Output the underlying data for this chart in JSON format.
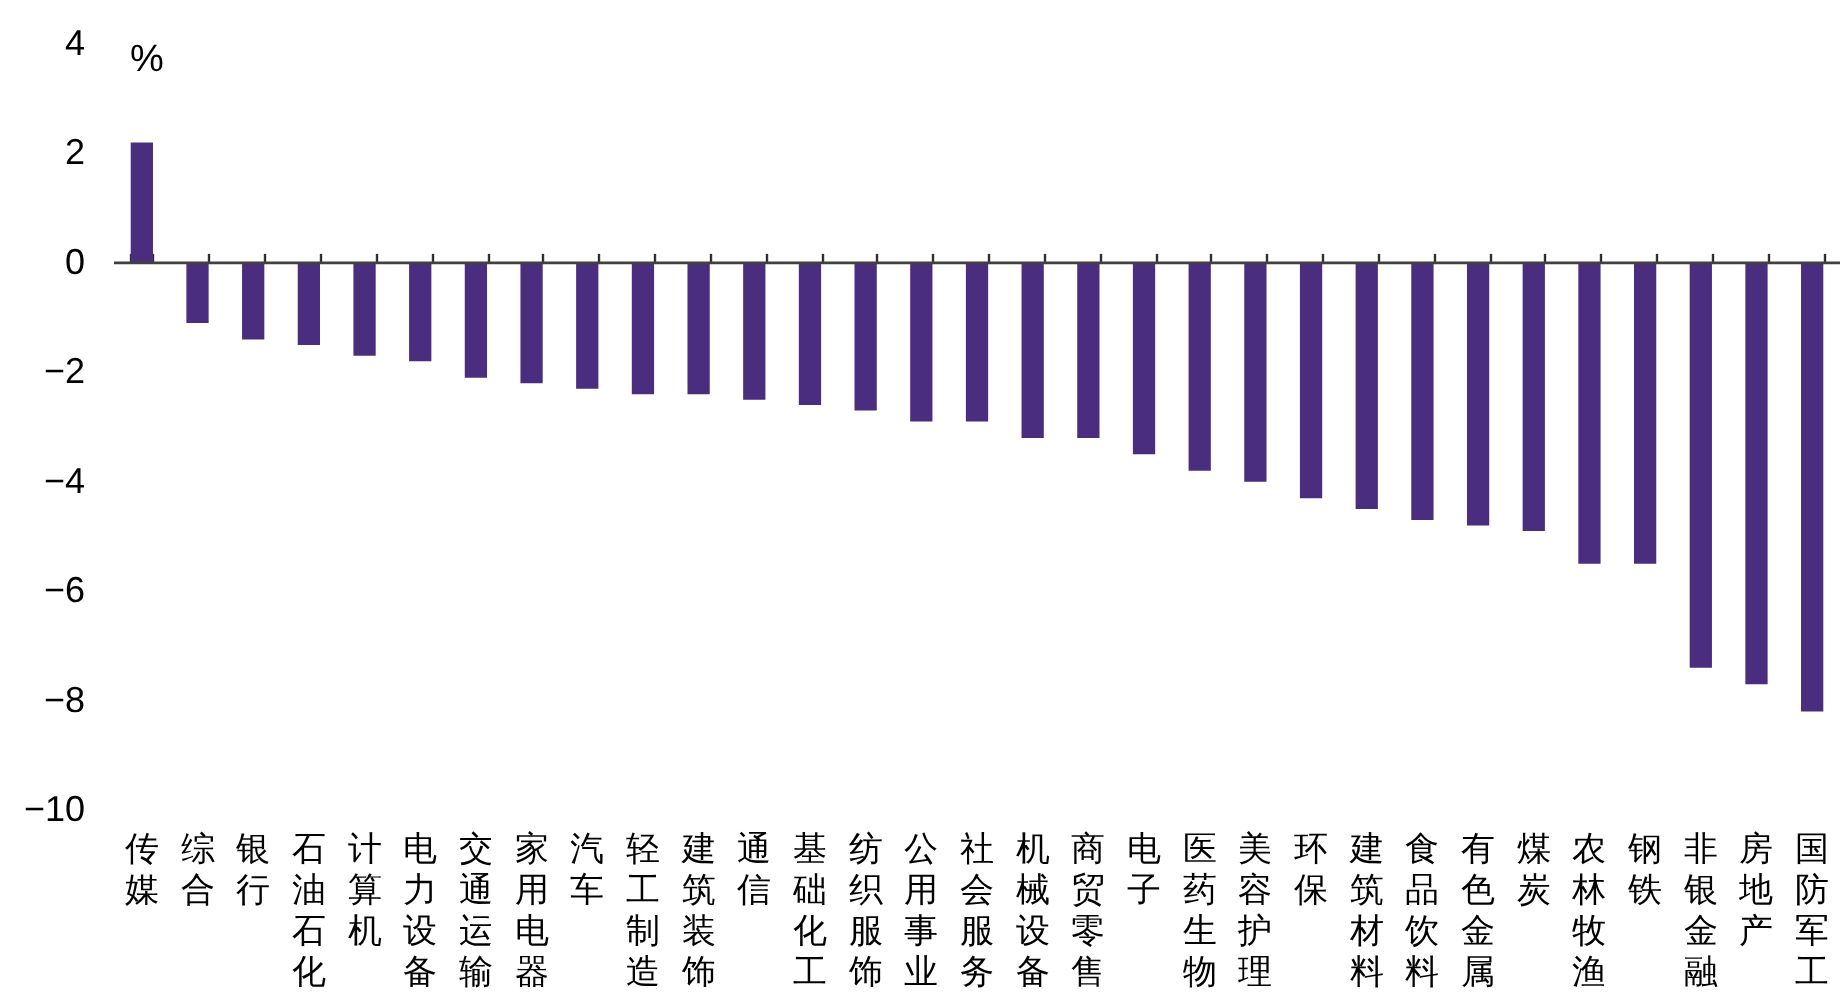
{
  "chart_data": {
    "type": "bar",
    "ylabel": "%",
    "categories": [
      "传媒",
      "综合",
      "银行",
      "石油石化",
      "计算机",
      "电力设备",
      "交通运输",
      "家用电器",
      "汽车",
      "轻工制造",
      "建筑装饰",
      "通信",
      "基础化工",
      "纺织服饰",
      "公用事业",
      "社会服务",
      "机械设备",
      "商贸零售",
      "电子",
      "医药生物",
      "美容护理",
      "环保",
      "建筑材料",
      "食品饮料",
      "有色金属",
      "煤炭",
      "农林牧渔",
      "钢铁",
      "非银金融",
      "房地产",
      "国防军工"
    ],
    "values": [
      2.2,
      -1.1,
      -1.4,
      -1.5,
      -1.7,
      -1.8,
      -2.1,
      -2.2,
      -2.3,
      -2.4,
      -2.4,
      -2.5,
      -2.6,
      -2.7,
      -2.9,
      -2.9,
      -3.2,
      -3.2,
      -3.5,
      -3.8,
      -4.0,
      -4.3,
      -4.5,
      -4.7,
      -4.8,
      -4.9,
      -5.5,
      -5.5,
      -7.4,
      -7.7,
      -8.2
    ],
    "color": "#4b2d7f",
    "ylim": [
      -10,
      4
    ],
    "yticks": [
      -10,
      -8,
      -6,
      -4,
      -2,
      0,
      2,
      4
    ],
    "ref_lines": [
      {
        "axis": "y",
        "value": 0,
        "color": "#404040"
      }
    ],
    "grid": false
  }
}
